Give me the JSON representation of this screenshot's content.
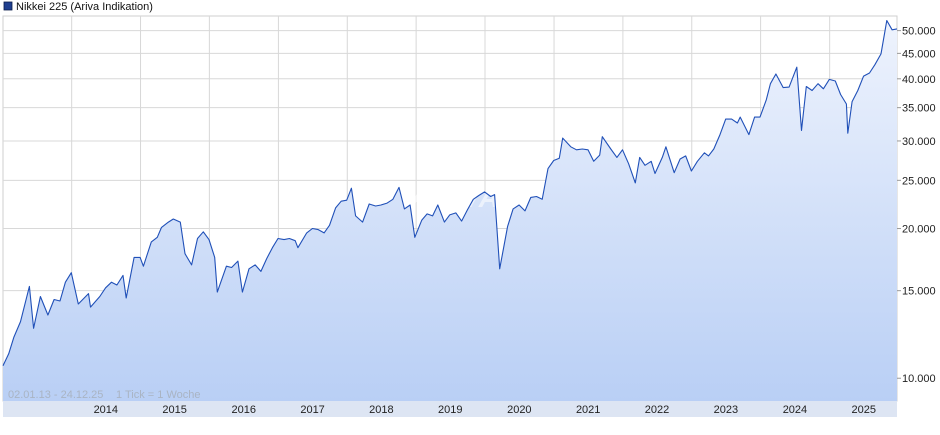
{
  "legend": {
    "label": "Nikkei 225 (Ariva Indikation)",
    "color": "#1f3f8f"
  },
  "footer": {
    "range_text": "02.01.13 - 24.12.25",
    "tick_text": "1 Tick = 1 Woche"
  },
  "watermark": "ARIVA",
  "colors": {
    "line": "#2050b8",
    "fill_top": "#eef3fd",
    "fill_bottom": "#b9cff5",
    "grid": "#d8d8d8",
    "axis_band": "#dde5f3"
  },
  "chart_data": {
    "type": "area",
    "title": "Nikkei 225 (Ariva Indikation)",
    "xlabel": "",
    "ylabel": "",
    "y_scale": "log",
    "ylim": [
      9000,
      53500
    ],
    "xlim": [
      "2013-01-02",
      "2025-12-24"
    ],
    "grid": true,
    "legend_position": "top-left",
    "x_tick_labels": [
      "2014",
      "2015",
      "2016",
      "2017",
      "2018",
      "2019",
      "2020",
      "2021",
      "2022",
      "2023",
      "2024",
      "2025"
    ],
    "y_tick_labels": [
      "10.000",
      "15.000",
      "20.000",
      "25.000",
      "30.000",
      "35.000",
      "40.000",
      "45.000",
      "50.000"
    ],
    "y_tick_values": [
      10000,
      15000,
      20000,
      25000,
      30000,
      35000,
      40000,
      45000,
      50000
    ],
    "series": [
      {
        "name": "Nikkei 225 (Ariva Indikation)",
        "points": [
          [
            "2013-01-02",
            10600
          ],
          [
            "2013-02-01",
            11200
          ],
          [
            "2013-03-01",
            12100
          ],
          [
            "2013-04-05",
            13000
          ],
          [
            "2013-05-22",
            15300
          ],
          [
            "2013-06-13",
            12600
          ],
          [
            "2013-07-19",
            14600
          ],
          [
            "2013-08-28",
            13400
          ],
          [
            "2013-09-30",
            14400
          ],
          [
            "2013-10-31",
            14300
          ],
          [
            "2013-11-29",
            15600
          ],
          [
            "2013-12-30",
            16300
          ],
          [
            "2014-02-05",
            14100
          ],
          [
            "2014-03-31",
            14800
          ],
          [
            "2014-04-11",
            13900
          ],
          [
            "2014-05-30",
            14600
          ],
          [
            "2014-06-30",
            15200
          ],
          [
            "2014-07-31",
            15600
          ],
          [
            "2014-08-29",
            15400
          ],
          [
            "2014-09-30",
            16100
          ],
          [
            "2014-10-17",
            14500
          ],
          [
            "2014-11-28",
            17500
          ],
          [
            "2014-12-30",
            17500
          ],
          [
            "2015-01-16",
            16800
          ],
          [
            "2015-02-27",
            18800
          ],
          [
            "2015-03-31",
            19200
          ],
          [
            "2015-04-22",
            20100
          ],
          [
            "2015-05-29",
            20600
          ],
          [
            "2015-06-24",
            20900
          ],
          [
            "2015-07-31",
            20600
          ],
          [
            "2015-08-25",
            17800
          ],
          [
            "2015-09-29",
            16900
          ],
          [
            "2015-10-30",
            19100
          ],
          [
            "2015-11-30",
            19700
          ],
          [
            "2015-12-30",
            19000
          ],
          [
            "2016-01-29",
            17500
          ],
          [
            "2016-02-12",
            14900
          ],
          [
            "2016-03-31",
            16800
          ],
          [
            "2016-04-28",
            16700
          ],
          [
            "2016-05-31",
            17200
          ],
          [
            "2016-06-24",
            14900
          ],
          [
            "2016-07-29",
            16600
          ],
          [
            "2016-08-31",
            16900
          ],
          [
            "2016-09-30",
            16400
          ],
          [
            "2016-10-31",
            17400
          ],
          [
            "2016-11-30",
            18300
          ],
          [
            "2016-12-30",
            19100
          ],
          [
            "2017-01-31",
            19000
          ],
          [
            "2017-02-28",
            19100
          ],
          [
            "2017-03-31",
            18900
          ],
          [
            "2017-04-14",
            18300
          ],
          [
            "2017-05-31",
            19600
          ],
          [
            "2017-06-30",
            20000
          ],
          [
            "2017-07-31",
            19900
          ],
          [
            "2017-08-31",
            19600
          ],
          [
            "2017-09-29",
            20300
          ],
          [
            "2017-10-31",
            22000
          ],
          [
            "2017-11-30",
            22700
          ],
          [
            "2017-12-29",
            22800
          ],
          [
            "2018-01-23",
            24100
          ],
          [
            "2018-02-14",
            21200
          ],
          [
            "2018-03-23",
            20600
          ],
          [
            "2018-04-27",
            22400
          ],
          [
            "2018-05-31",
            22200
          ],
          [
            "2018-06-29",
            22300
          ],
          [
            "2018-07-31",
            22500
          ],
          [
            "2018-08-31",
            22900
          ],
          [
            "2018-10-02",
            24200
          ],
          [
            "2018-10-31",
            21900
          ],
          [
            "2018-11-30",
            22300
          ],
          [
            "2018-12-25",
            19200
          ],
          [
            "2019-01-31",
            20800
          ],
          [
            "2019-02-28",
            21400
          ],
          [
            "2019-03-29",
            21200
          ],
          [
            "2019-04-26",
            22300
          ],
          [
            "2019-05-31",
            20600
          ],
          [
            "2019-06-28",
            21300
          ],
          [
            "2019-07-31",
            21500
          ],
          [
            "2019-08-30",
            20700
          ],
          [
            "2019-09-30",
            21800
          ],
          [
            "2019-10-31",
            22900
          ],
          [
            "2019-11-29",
            23300
          ],
          [
            "2019-12-30",
            23700
          ],
          [
            "2020-01-31",
            23200
          ],
          [
            "2020-02-21",
            23400
          ],
          [
            "2020-03-19",
            16600
          ],
          [
            "2020-04-30",
            20200
          ],
          [
            "2020-05-29",
            21900
          ],
          [
            "2020-06-30",
            22300
          ],
          [
            "2020-07-31",
            21700
          ],
          [
            "2020-08-31",
            23100
          ],
          [
            "2020-09-30",
            23200
          ],
          [
            "2020-10-30",
            22900
          ],
          [
            "2020-11-30",
            26400
          ],
          [
            "2020-12-30",
            27400
          ],
          [
            "2021-01-29",
            27700
          ],
          [
            "2021-02-16",
            30400
          ],
          [
            "2021-03-31",
            29200
          ],
          [
            "2021-04-30",
            28800
          ],
          [
            "2021-05-31",
            28900
          ],
          [
            "2021-06-30",
            28800
          ],
          [
            "2021-07-30",
            27300
          ],
          [
            "2021-08-31",
            28100
          ],
          [
            "2021-09-14",
            30600
          ],
          [
            "2021-10-29",
            28900
          ],
          [
            "2021-11-30",
            27800
          ],
          [
            "2021-12-30",
            28800
          ],
          [
            "2022-01-31",
            27000
          ],
          [
            "2022-03-08",
            24700
          ],
          [
            "2022-03-31",
            27800
          ],
          [
            "2022-04-28",
            26800
          ],
          [
            "2022-05-31",
            27300
          ],
          [
            "2022-06-20",
            25800
          ],
          [
            "2022-07-29",
            27800
          ],
          [
            "2022-08-17",
            29200
          ],
          [
            "2022-09-30",
            25900
          ],
          [
            "2022-10-31",
            27600
          ],
          [
            "2022-11-30",
            28000
          ],
          [
            "2022-12-30",
            26100
          ],
          [
            "2023-01-31",
            27300
          ],
          [
            "2023-03-09",
            28400
          ],
          [
            "2023-03-31",
            28000
          ],
          [
            "2023-04-28",
            28900
          ],
          [
            "2023-05-31",
            30900
          ],
          [
            "2023-06-30",
            33200
          ],
          [
            "2023-07-31",
            33200
          ],
          [
            "2023-08-31",
            32600
          ],
          [
            "2023-09-15",
            33500
          ],
          [
            "2023-10-31",
            30900
          ],
          [
            "2023-11-30",
            33500
          ],
          [
            "2023-12-29",
            33500
          ],
          [
            "2024-01-31",
            36300
          ],
          [
            "2024-02-22",
            39100
          ],
          [
            "2024-03-22",
            40900
          ],
          [
            "2024-04-30",
            38400
          ],
          [
            "2024-05-31",
            38500
          ],
          [
            "2024-07-11",
            42200
          ],
          [
            "2024-08-05",
            31500
          ],
          [
            "2024-08-30",
            38600
          ],
          [
            "2024-09-30",
            37900
          ],
          [
            "2024-10-31",
            39100
          ],
          [
            "2024-11-29",
            38200
          ],
          [
            "2024-12-30",
            39900
          ],
          [
            "2025-01-31",
            39600
          ],
          [
            "2025-02-28",
            37200
          ],
          [
            "2025-03-31",
            35600
          ],
          [
            "2025-04-07",
            31100
          ],
          [
            "2025-04-30",
            36000
          ],
          [
            "2025-05-30",
            37900
          ],
          [
            "2025-06-30",
            40500
          ],
          [
            "2025-07-31",
            41100
          ],
          [
            "2025-08-29",
            42700
          ],
          [
            "2025-09-30",
            44900
          ],
          [
            "2025-10-31",
            52400
          ],
          [
            "2025-11-28",
            50200
          ],
          [
            "2025-12-24",
            50400
          ]
        ]
      }
    ]
  }
}
